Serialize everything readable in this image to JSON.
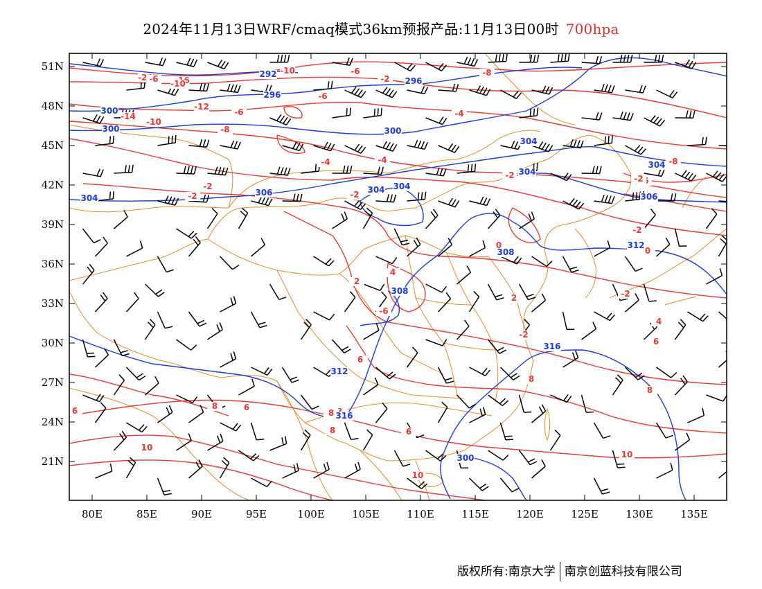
{
  "title": {
    "main": "2024年11月13日WRF/cmaq模式36km预报产品:11月13日00时",
    "level": "700hpa"
  },
  "axes": {
    "lat_labels": [
      "51N",
      "48N",
      "45N",
      "42N",
      "39N",
      "36N",
      "33N",
      "30N",
      "27N",
      "24N",
      "21N"
    ],
    "lon_labels": [
      "80E",
      "85E",
      "90E",
      "95E",
      "100E",
      "105E",
      "110E",
      "115E",
      "120E",
      "125E",
      "130E",
      "135E"
    ]
  },
  "legend_colors": {
    "temperature_contour": "#e53935",
    "geopotential_contour": "#1e3ad6",
    "boundaries": "#e08a2c",
    "wind_barbs": "#000000"
  },
  "contour_labels": {
    "red": [
      "-20",
      "-16",
      "-10",
      "-8",
      "-6",
      "-14",
      "-10",
      "-12",
      "-6",
      "-8",
      "-6",
      "-4",
      "-4",
      "-2",
      "-4",
      "-2",
      "-2",
      "-2",
      "-2",
      "-6",
      "-2",
      "0",
      "0",
      "2",
      "4",
      "-2",
      "2",
      "-6",
      "-2",
      "6",
      "4",
      "6",
      "8",
      "8",
      "6",
      "8",
      "8",
      "6",
      "6",
      "10",
      "10",
      "10",
      "8",
      "8",
      "-8",
      "-6",
      "-10",
      "-2"
    ],
    "blue": [
      "292",
      "296",
      "296",
      "300",
      "300",
      "300",
      "304",
      "306",
      "304",
      "304",
      "304",
      "304",
      "306",
      "312",
      "308",
      "308",
      "312",
      "316",
      "316",
      "300",
      "304"
    ]
  },
  "footer": {
    "left": "版权所有:南京大学",
    "right": "南京创蓝科技有限公司"
  }
}
